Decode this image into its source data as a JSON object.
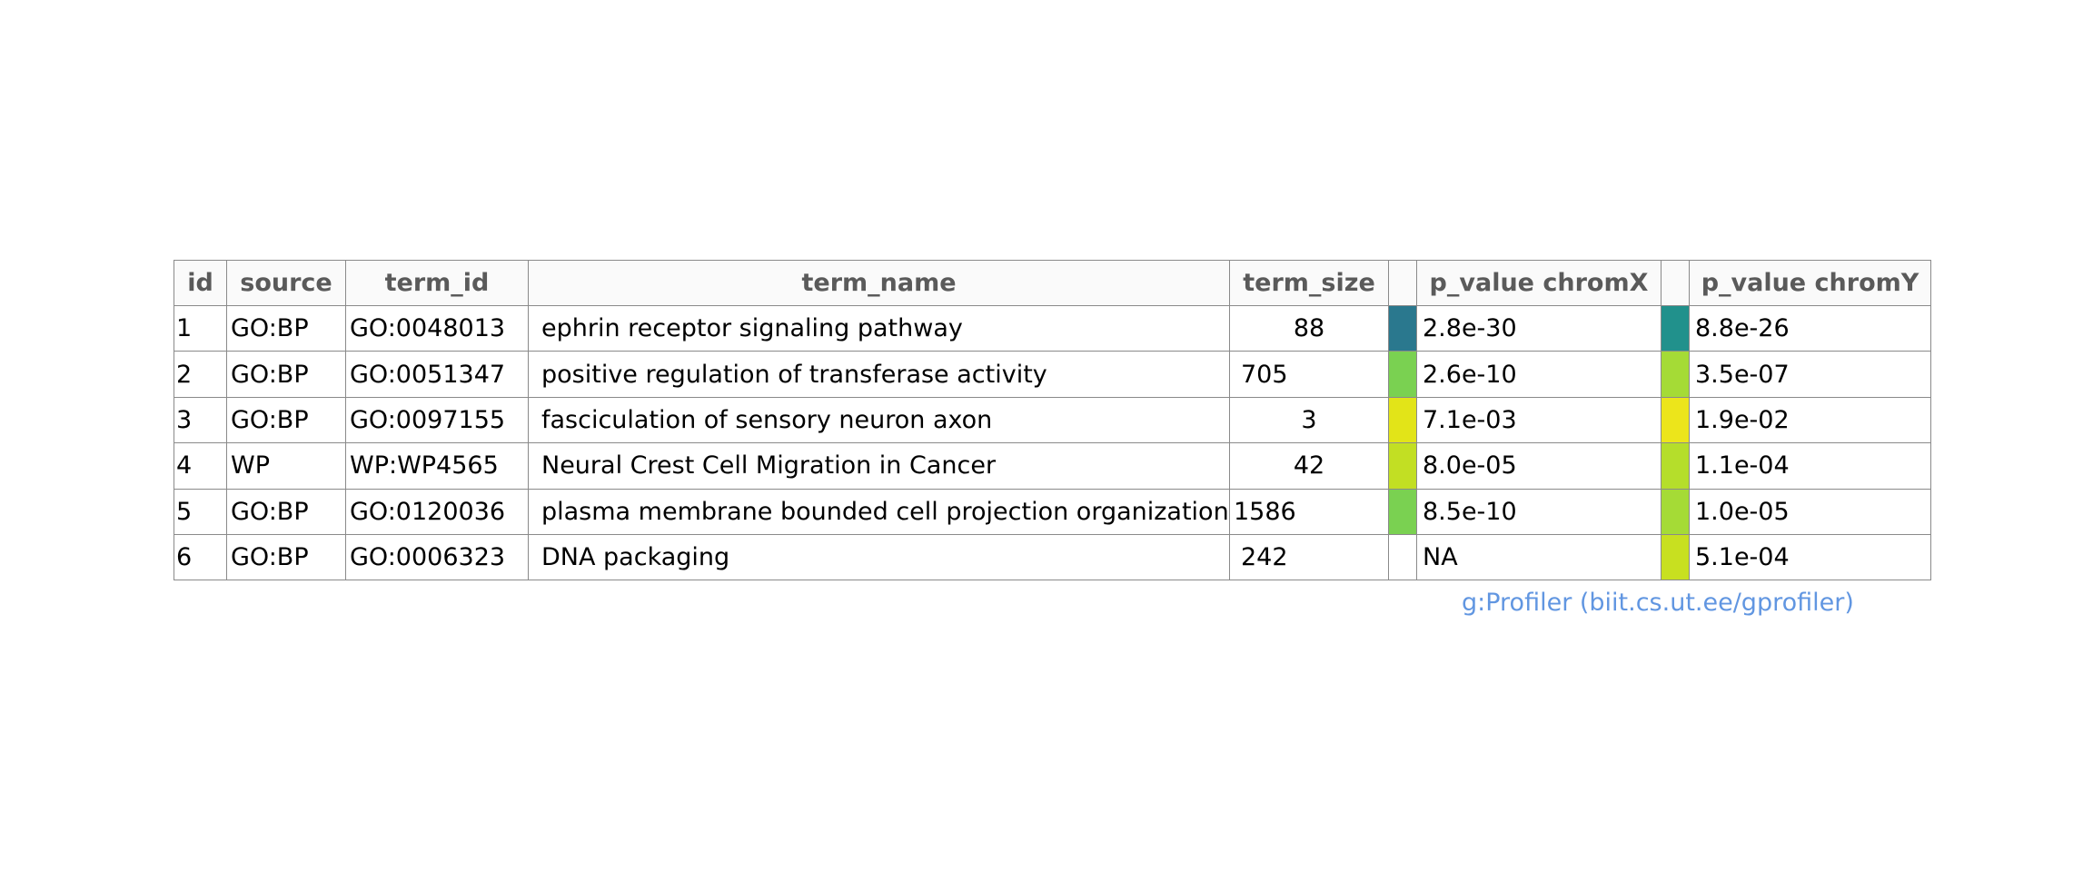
{
  "chart_data": {
    "type": "table",
    "columns": [
      "id",
      "source",
      "term_id",
      "term_name",
      "term_size",
      "",
      "p_value chromX",
      "",
      "p_value chromY"
    ],
    "rows": [
      {
        "id": "1",
        "source": "GO:BP",
        "term_id": "GO:0048013",
        "term_name": "ephrin receptor signaling pathway",
        "term_size": "88",
        "p_chromX": "2.8e-30",
        "color_chromX": "#2a788e",
        "p_chromY": "8.8e-26",
        "color_chromY": "#21918c"
      },
      {
        "id": "2",
        "source": "GO:BP",
        "term_id": "GO:0051347",
        "term_name": "positive regulation of transferase activity",
        "term_size": "705",
        "p_chromX": "2.6e-10",
        "color_chromX": "#7ad151",
        "p_chromY": "3.5e-07",
        "color_chromY": "#a5db36"
      },
      {
        "id": "3",
        "source": "GO:BP",
        "term_id": "GO:0097155",
        "term_name": "fasciculation of sensory neuron axon",
        "term_size": "3",
        "p_chromX": "7.1e-03",
        "color_chromX": "#e2e418",
        "p_chromY": "1.9e-02",
        "color_chromY": "#ece51b"
      },
      {
        "id": "4",
        "source": "WP",
        "term_id": "WP:WP4565",
        "term_name": "Neural Crest Cell Migration in Cancer",
        "term_size": "42",
        "p_chromX": "8.0e-05",
        "color_chromX": "#c2df23",
        "p_chromY": "1.1e-04",
        "color_chromY": "#b5de2b"
      },
      {
        "id": "5",
        "source": "GO:BP",
        "term_id": "GO:0120036",
        "term_name": "plasma membrane bounded cell projection organization",
        "term_size": "1586",
        "p_chromX": "8.5e-10",
        "color_chromX": "#7ad151",
        "p_chromY": "1.0e-05",
        "color_chromY": "#a5db36"
      },
      {
        "id": "6",
        "source": "GO:BP",
        "term_id": "GO:0006323",
        "term_name": "DNA packaging",
        "term_size": "242",
        "p_chromX": "NA",
        "color_chromX": "#ffffff",
        "p_chromY": "5.1e-04",
        "color_chromY": "#c8e020"
      }
    ],
    "header_text_color": "#5a5a5a",
    "header_background": "#fafafa"
  },
  "footer": {
    "credit": "g:Profiler (biit.cs.ut.ee/gprofiler)",
    "credit_color": "#6196e1"
  }
}
